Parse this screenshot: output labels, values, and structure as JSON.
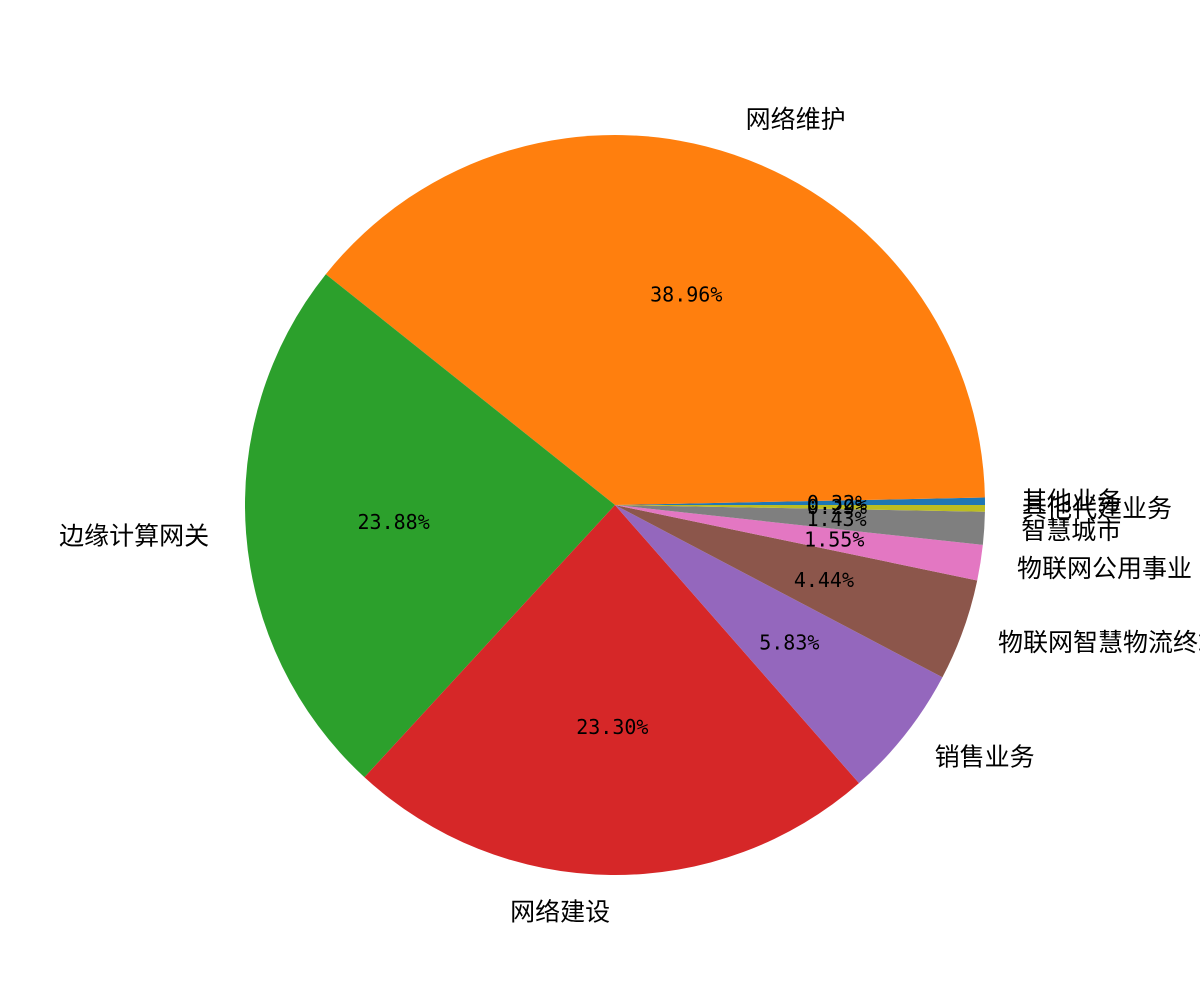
{
  "chart_data": {
    "type": "pie",
    "start_angle_deg": 0,
    "direction": "counterclockwise",
    "slices": [
      {
        "label": "其他业务",
        "value": 0.32,
        "value_label": "0.32%",
        "color": "#1f77b4"
      },
      {
        "label": "网络维护",
        "value": 38.96,
        "value_label": "38.96%",
        "color": "#ff7f0e"
      },
      {
        "label": "边缘计算网关",
        "value": 23.88,
        "value_label": "23.88%",
        "color": "#2ca02c"
      },
      {
        "label": "网络建设",
        "value": 23.3,
        "value_label": "23.30%",
        "color": "#d62728"
      },
      {
        "label": "销售业务",
        "value": 5.83,
        "value_label": "5.83%",
        "color": "#9467bd"
      },
      {
        "label": "物联网智慧物流终端",
        "value": 4.44,
        "value_label": "4.44%",
        "color": "#8c564b"
      },
      {
        "label": "物联网公用事业",
        "value": 1.55,
        "value_label": "1.55%",
        "color": "#e377c2"
      },
      {
        "label": "智慧城市",
        "value": 1.43,
        "value_label": "1.43%",
        "color": "#7f7f7f"
      },
      {
        "label": "其他代建业务",
        "value": 0.29,
        "value_label": "0.29%",
        "color": "#bcbd22"
      }
    ]
  }
}
